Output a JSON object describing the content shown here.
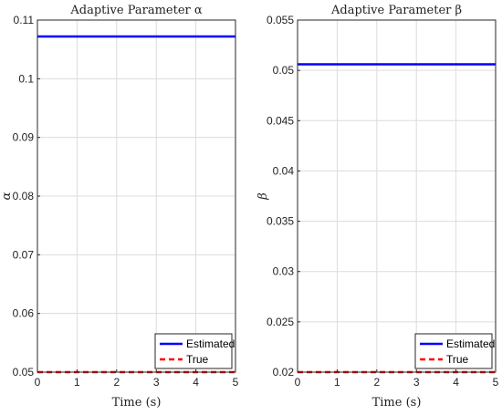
{
  "chart_data": [
    {
      "type": "line",
      "title": "Adaptive Parameter α",
      "xlabel": "Time (s)",
      "ylabel": "α",
      "xlim": [
        0,
        5
      ],
      "ylim": [
        0.05,
        0.11
      ],
      "xticks": [
        0,
        1,
        2,
        3,
        4,
        5
      ],
      "yticks": [
        0.05,
        0.06,
        0.07,
        0.08,
        0.09,
        0.1,
        0.11
      ],
      "ytick_labels": [
        "0.05",
        "0.06",
        "0.07",
        "0.08",
        "0.09",
        "0.1",
        "0.11"
      ],
      "grid": true,
      "legend": "bottom-right",
      "series": [
        {
          "name": "Estimated",
          "x": [
            0,
            5
          ],
          "y": [
            0.1072,
            0.1072
          ],
          "color": "#0000ff",
          "style": "solid"
        },
        {
          "name": "True",
          "x": [
            0,
            5
          ],
          "y": [
            0.05,
            0.05
          ],
          "color": "#ff0000",
          "style": "dashed"
        }
      ]
    },
    {
      "type": "line",
      "title": "Adaptive Parameter β",
      "xlabel": "Time (s)",
      "ylabel": "β",
      "xlim": [
        0,
        5
      ],
      "ylim": [
        0.02,
        0.055
      ],
      "xticks": [
        0,
        1,
        2,
        3,
        4,
        5
      ],
      "yticks": [
        0.02,
        0.025,
        0.03,
        0.035,
        0.04,
        0.045,
        0.05,
        0.055
      ],
      "ytick_labels": [
        "0.02",
        "0.025",
        "0.03",
        "0.035",
        "0.04",
        "0.045",
        "0.05",
        "0.055"
      ],
      "grid": true,
      "legend": "bottom-right",
      "series": [
        {
          "name": "Estimated",
          "x": [
            0,
            5
          ],
          "y": [
            0.0506,
            0.0506
          ],
          "color": "#0000ff",
          "style": "solid"
        },
        {
          "name": "True",
          "x": [
            0,
            5
          ],
          "y": [
            0.02,
            0.02
          ],
          "color": "#ff0000",
          "style": "dashed"
        }
      ]
    }
  ]
}
